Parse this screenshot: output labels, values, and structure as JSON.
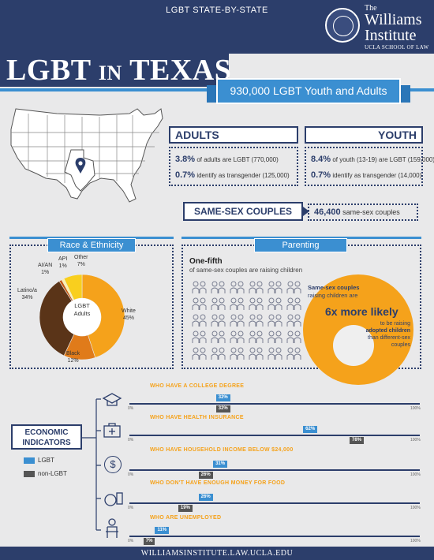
{
  "header": {
    "top_title": "LGBT STATE-BY-STATE",
    "logo_the": "The",
    "logo_name1": "Williams",
    "logo_name2": "Institute",
    "logo_sub": "UCLA SCHOOL OF LAW",
    "title_big": "LGBT",
    "title_small": "IN",
    "title_state": "TEXAS"
  },
  "population": "930,000 LGBT Youth and Adults",
  "adults": {
    "label": "ADULTS",
    "pct_lgbt": "3.8%",
    "text_lgbt": "of adults are LGBT (770,000)",
    "pct_trans": "0.7%",
    "text_trans": "identify as transgender (125,000)"
  },
  "youth": {
    "label": "YOUTH",
    "pct_lgbt": "8.4%",
    "text_lgbt": "of youth (13-19) are LGBT (159,000)",
    "pct_trans": "0.7%",
    "text_trans": "identify as transgender (14,000)"
  },
  "couples": {
    "label": "SAME-SEX COUPLES",
    "count": "46,400",
    "count_text": "same-sex couples"
  },
  "race": {
    "title": "Race & Ethnicity",
    "center_line1": "LGBT",
    "center_line2": "Adults",
    "labels": {
      "white": "White",
      "white_pct": "45%",
      "black": "Black",
      "black_pct": "12%",
      "latino": "Latino/a",
      "latino_pct": "34%",
      "aian": "AI/AN",
      "aian_pct": "1%",
      "api": "API",
      "api_pct": "1%",
      "other": "Other",
      "other_pct": "7%"
    }
  },
  "chart_data": {
    "type": "pie",
    "title": "Race & Ethnicity",
    "categories": [
      "White",
      "Black",
      "Latino/a",
      "AI/AN",
      "API",
      "Other"
    ],
    "values": [
      45,
      12,
      34,
      1,
      1,
      7
    ],
    "colors": [
      "#f5a21b",
      "#e07b1a",
      "#5a3418",
      "#c65a12",
      "#fff2a8",
      "#f9cf1e"
    ]
  },
  "parenting": {
    "title": "Parenting",
    "one_fifth": "One-fifth",
    "one_fifth_sub": "of same-sex couples are raising children",
    "t1": "Same-sex couples",
    "t2": "raising children are",
    "big": "6x more likely",
    "t3a": "to be raising",
    "t3b": "adopted children",
    "t4a": "than different-sex",
    "t4b": "couples"
  },
  "economic": {
    "title_line1": "ECONOMIC",
    "title_line2": "INDICATORS",
    "legend_lgbt": "LGBT",
    "legend_non": "non-LGBT",
    "end_min": "0%",
    "end_max": "100%",
    "indicators": [
      {
        "title": "WHO HAVE A COLLEGE DEGREE",
        "lgbt_label": "32%",
        "non_label": "32%",
        "lgbt": 32,
        "non": 32
      },
      {
        "title": "WHO HAVE HEALTH INSURANCE",
        "lgbt_label": "62%",
        "non_label": "78%",
        "lgbt": 62,
        "non": 78
      },
      {
        "title": "WHO HAVE HOUSEHOLD INCOME BELOW $24,000",
        "lgbt_label": "31%",
        "non_label": "26%",
        "lgbt": 31,
        "non": 26
      },
      {
        "title": "WHO DON'T HAVE ENOUGH MONEY FOR FOOD",
        "lgbt_label": "26%",
        "non_label": "19%",
        "lgbt": 26,
        "non": 19
      },
      {
        "title": "WHO ARE UNEMPLOYED",
        "lgbt_label": "11%",
        "non_label": "7%",
        "lgbt": 11,
        "non": 7
      }
    ]
  },
  "footer": "WILLIAMSINSTITUTE.LAW.UCLA.EDU",
  "colors": {
    "navy": "#2c3e6b",
    "blue": "#3b8fd1",
    "orange": "#f5a21b",
    "gray": "#555555"
  }
}
